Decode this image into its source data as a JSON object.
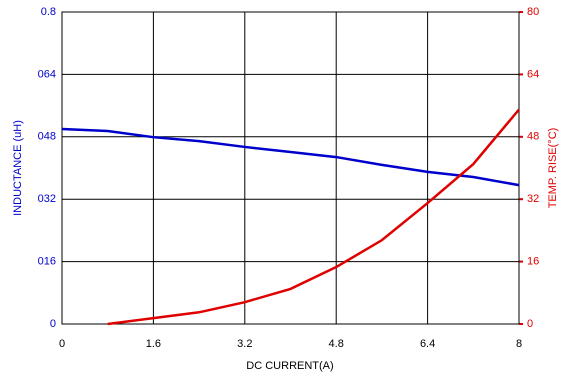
{
  "chart_data": {
    "type": "line",
    "x_label": "DC CURRENT(A)",
    "y_label": "INDUCTANCE (uH)",
    "y2_label": "TEMP. RISE(°C)",
    "x": [
      0,
      0.8,
      1.6,
      2.4,
      3.2,
      4.0,
      4.8,
      5.6,
      6.4,
      7.2,
      8
    ],
    "series": [
      {
        "name": "Inductance",
        "color": "#0000cc",
        "axis": "y",
        "values": [
          0.5,
          0.495,
          0.479,
          0.469,
          0.454,
          0.441,
          0.428,
          0.408,
          0.39,
          0.377,
          0.356
        ]
      },
      {
        "name": "Temp. Rise",
        "color": "#e00000",
        "axis": "y2",
        "values": [
          null,
          0,
          1.5,
          3,
          5.6,
          9,
          14.6,
          21.5,
          31,
          41,
          55
        ]
      }
    ],
    "xlim": [
      0,
      8
    ],
    "xticks": [
      0,
      1.6,
      3.2,
      4.8,
      6.4,
      8
    ],
    "ylim": [
      0,
      0.8
    ],
    "yticks": [
      0,
      {
        "value": 0.16,
        "label": "016"
      },
      {
        "value": 0.32,
        "label": "032"
      },
      {
        "value": 0.48,
        "label": "048"
      },
      {
        "value": 0.64,
        "label": "064"
      },
      0.8
    ],
    "y2lim": [
      0,
      80
    ],
    "y2ticks": [
      0,
      16,
      32,
      48,
      64,
      80
    ],
    "grid": true
  }
}
